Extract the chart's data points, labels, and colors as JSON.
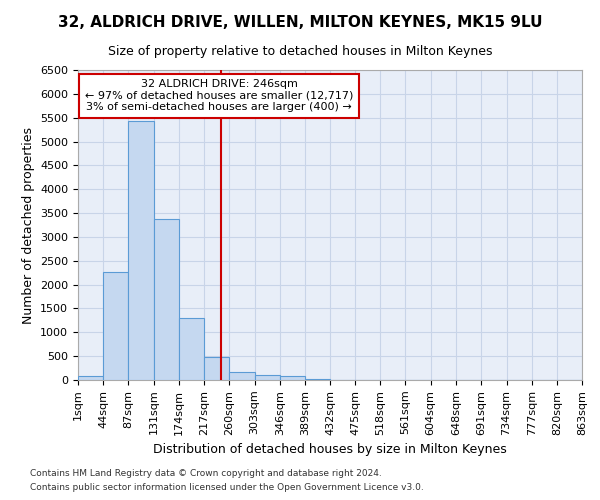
{
  "title1": "32, ALDRICH DRIVE, WILLEN, MILTON KEYNES, MK15 9LU",
  "title2": "Size of property relative to detached houses in Milton Keynes",
  "xlabel": "Distribution of detached houses by size in Milton Keynes",
  "ylabel": "Number of detached properties",
  "footer1": "Contains HM Land Registry data © Crown copyright and database right 2024.",
  "footer2": "Contains public sector information licensed under the Open Government Licence v3.0.",
  "annotation_line1": "32 ALDRICH DRIVE: 246sqm",
  "annotation_line2": "← 97% of detached houses are smaller (12,717)",
  "annotation_line3": "3% of semi-detached houses are larger (400) →",
  "property_size": 246,
  "bar_color": "#c5d8f0",
  "bar_edge_color": "#5b9bd5",
  "vline_color": "#cc0000",
  "annotation_box_edge": "#cc0000",
  "annotation_box_face": "#ffffff",
  "background_color": "#ffffff",
  "plot_bg_color": "#e8eef8",
  "grid_color": "#c8d4e8",
  "bin_edges": [
    1,
    44,
    87,
    131,
    174,
    217,
    260,
    303,
    346,
    389,
    432,
    475,
    518,
    561,
    604,
    648,
    691,
    734,
    777,
    820,
    863
  ],
  "bin_heights": [
    75,
    2270,
    5430,
    3380,
    1310,
    490,
    160,
    100,
    75,
    25,
    5,
    5,
    0,
    0,
    0,
    0,
    0,
    0,
    0,
    0
  ],
  "ylim": [
    0,
    6500
  ],
  "yticks": [
    0,
    500,
    1000,
    1500,
    2000,
    2500,
    3000,
    3500,
    4000,
    4500,
    5000,
    5500,
    6000,
    6500
  ],
  "title1_fontsize": 11,
  "title2_fontsize": 9,
  "xlabel_fontsize": 9,
  "ylabel_fontsize": 9,
  "tick_fontsize": 8,
  "footer_fontsize": 6.5,
  "annotation_fontsize": 8
}
